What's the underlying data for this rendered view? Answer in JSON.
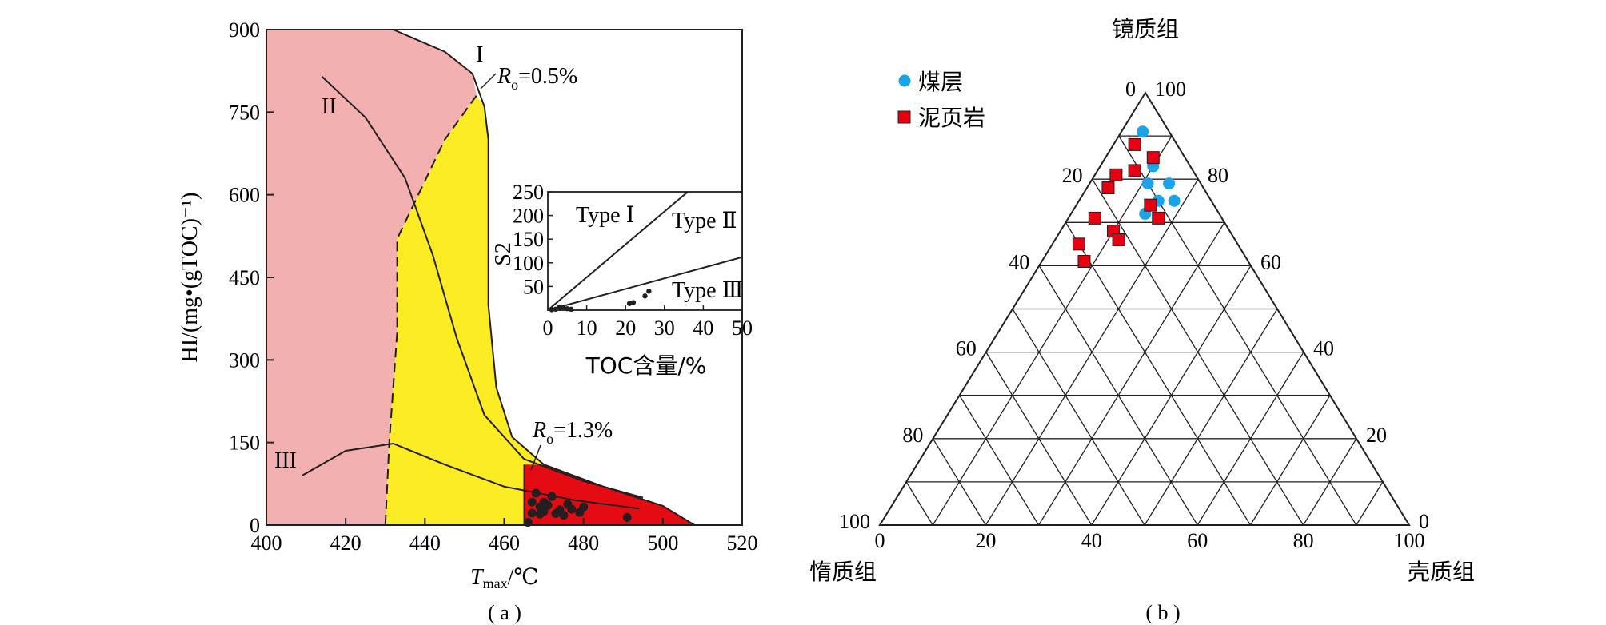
{
  "colors": {
    "zone_immature": "#f2b0b0",
    "zone_oil_window": "#fcec23",
    "zone_high_mature": "#e50b12",
    "coal_marker": "#1aa3e8",
    "shale_marker": "#e60012",
    "ink": "#231f20"
  },
  "panel_a": {
    "caption": "( a )",
    "ylabel": "HI/(mg•(gTOC)⁻¹)",
    "xlabel_main": "T",
    "xlabel_sub": "max",
    "xlabel_unit": "/℃",
    "curve_labels": {
      "type1": "I",
      "type2": "II",
      "type3": "III"
    },
    "ro_05": {
      "r": "R",
      "sub": "o",
      "value": "=0.5%"
    },
    "ro_13": {
      "r": "R",
      "sub": "o",
      "value": "=1.3%"
    },
    "inset": {
      "xlabel": "TOC含量/%",
      "ylabel": "S2",
      "labels": {
        "type1": "Type Ⅰ",
        "type2": "Type Ⅱ",
        "type3": "Type Ⅲ"
      }
    }
  },
  "panel_b": {
    "caption": "( b )",
    "vertex_top": "镜质组",
    "vertex_left": "惰质组",
    "vertex_right": "壳质组",
    "legend": [
      {
        "label": "煤层",
        "marker": "circle"
      },
      {
        "label": "泥页岩",
        "marker": "square"
      }
    ]
  },
  "chart_data": [
    {
      "type": "scatter",
      "panel": "a",
      "xlabel": "Tmax/℃",
      "ylabel": "HI/(mg•(gTOC)⁻¹)",
      "xlim": [
        400,
        520
      ],
      "ylim": [
        0,
        900
      ],
      "xticks": [
        400,
        420,
        440,
        460,
        480,
        500,
        520
      ],
      "yticks": [
        0,
        150,
        300,
        450,
        600,
        750,
        900
      ],
      "kerogen_curves": {
        "I": [
          [
            432,
            900
          ],
          [
            445,
            860
          ],
          [
            452,
            820
          ],
          [
            455,
            760
          ],
          [
            456,
            700
          ],
          [
            456,
            400
          ],
          [
            458,
            250
          ],
          [
            462,
            160
          ],
          [
            470,
            110
          ],
          [
            485,
            70
          ],
          [
            500,
            35
          ],
          [
            508,
            0
          ]
        ],
        "II": [
          [
            414,
            815
          ],
          [
            425,
            740
          ],
          [
            435,
            630
          ],
          [
            442,
            490
          ],
          [
            448,
            340
          ],
          [
            455,
            200
          ],
          [
            465,
            120
          ],
          [
            480,
            80
          ],
          [
            495,
            50
          ]
        ],
        "III": [
          [
            409,
            90
          ],
          [
            420,
            135
          ],
          [
            432,
            148
          ],
          [
            445,
            110
          ],
          [
            460,
            70
          ],
          [
            478,
            45
          ],
          [
            494,
            30
          ]
        ]
      },
      "maturity_boundaries": {
        "Ro=0.5%": [
          [
            453,
            780
          ],
          [
            445,
            700
          ],
          [
            437,
            580
          ],
          [
            433,
            520
          ],
          [
            433,
            350
          ],
          [
            431,
            150
          ],
          [
            430,
            0
          ]
        ],
        "Ro=1.3%": [
          [
            465,
            110
          ],
          [
            465,
            0
          ]
        ]
      },
      "series": [
        {
          "name": "",
          "points": [
            [
              466,
              5
            ],
            [
              467,
              22
            ],
            [
              469,
              20
            ],
            [
              470,
              25
            ],
            [
              473,
              21
            ],
            [
              475,
              18
            ],
            [
              479,
              23
            ],
            [
              491,
              14
            ],
            [
              467,
              42
            ],
            [
              469,
              33
            ],
            [
              470,
              42
            ],
            [
              471,
              36
            ],
            [
              474,
              28
            ],
            [
              477,
              29
            ],
            [
              472,
              52
            ],
            [
              468,
              58
            ],
            [
              476,
              38
            ],
            [
              480,
              33
            ]
          ]
        }
      ],
      "inset": {
        "type": "scatter",
        "xlabel": "TOC含量/%",
        "ylabel": "S2",
        "xlim": [
          0,
          50
        ],
        "ylim": [
          0,
          250
        ],
        "xticks": [
          0,
          10,
          20,
          30,
          40,
          50
        ],
        "yticks": [
          50,
          100,
          150,
          200,
          250
        ],
        "boundary_lines": [
          {
            "from": [
              0,
              0
            ],
            "to": [
              36,
              250
            ]
          },
          {
            "from": [
              0,
              0
            ],
            "to": [
              50,
              112
            ]
          }
        ],
        "regions": [
          "Type Ⅰ",
          "Type Ⅱ",
          "Type Ⅲ"
        ],
        "points": [
          [
            1,
            1
          ],
          [
            2,
            2
          ],
          [
            3,
            6
          ],
          [
            4,
            5
          ],
          [
            5,
            3
          ],
          [
            6,
            2
          ],
          [
            21,
            14
          ],
          [
            22,
            16
          ],
          [
            25,
            30
          ],
          [
            26,
            40
          ]
        ]
      }
    },
    {
      "type": "scatter",
      "panel": "b",
      "subtype": "ternary",
      "axes": {
        "top": "镜质组",
        "left": "惰质组",
        "right": "壳质组"
      },
      "ticks": [
        0,
        20,
        40,
        60,
        80,
        100
      ],
      "grid_step": 10,
      "point_format": "[vitrinite, inertinite, exinite] %",
      "series": [
        {
          "name": "煤层",
          "marker": "circle",
          "points": [
            [
              91,
              5,
              4
            ],
            [
              83,
              7,
              10
            ],
            [
              79,
              10,
              11
            ],
            [
              79,
              6,
              15
            ],
            [
              75,
              10,
              15
            ],
            [
              75,
              7,
              18
            ],
            [
              72,
              14,
              14
            ]
          ]
        },
        {
          "name": "泥页岩",
          "marker": "square",
          "points": [
            [
              88,
              8,
              4
            ],
            [
              85,
              6,
              9
            ],
            [
              82,
              11,
              7
            ],
            [
              81,
              15,
              4
            ],
            [
              78,
              18,
              4
            ],
            [
              74,
              12,
              14
            ],
            [
              71,
              12,
              17
            ],
            [
              71,
              24,
              5
            ],
            [
              68,
              22,
              10
            ],
            [
              66,
              22,
              12
            ],
            [
              65,
              30,
              5
            ],
            [
              61,
              31,
              8
            ]
          ]
        }
      ]
    }
  ]
}
